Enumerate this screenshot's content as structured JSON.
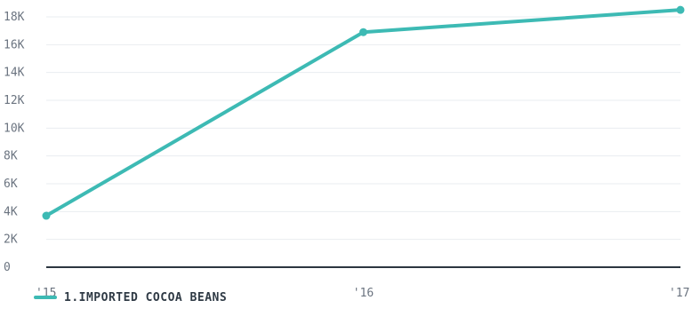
{
  "chart_data": {
    "type": "line",
    "x": [
      "'15",
      "'16",
      "'17"
    ],
    "y_ticks": [
      "0",
      "2K",
      "4K",
      "6K",
      "8K",
      "10K",
      "12K",
      "14K",
      "16K",
      "18K"
    ],
    "ylim": [
      0,
      18000
    ],
    "grid": true,
    "legend_placement": "bottom-left",
    "series": [
      {
        "name": "1.IMPORTED COCOA BEANS",
        "values": [
          3700,
          16900,
          18500
        ],
        "color": "#3dbab4"
      }
    ]
  },
  "colors": {
    "grid": "#e9edf0",
    "axis": "#2c3640",
    "tick_text": "#6b7480",
    "legend_text": "#2f3a45"
  }
}
